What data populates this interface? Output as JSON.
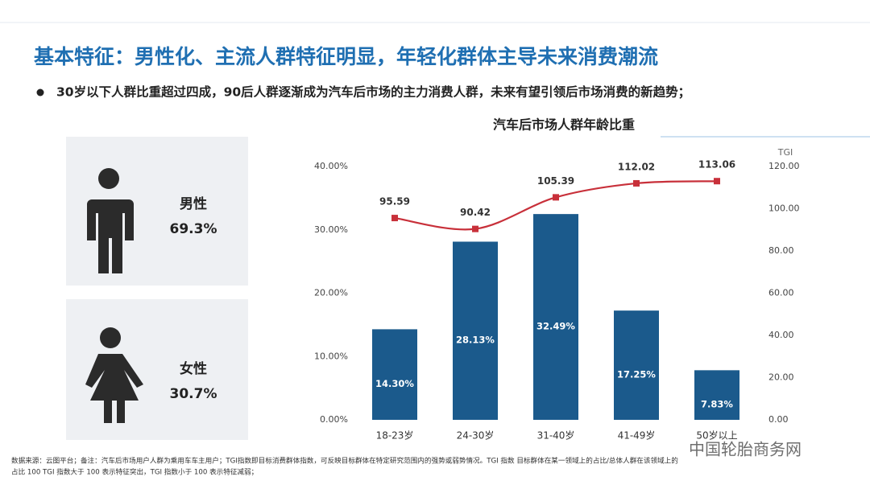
{
  "header": {
    "title": "基本特征：男性化、主流人群特征明显，年轻化群体主导未来消费潮流",
    "bullet": "30岁以下人群比重超过四成，90后人群逐渐成为汽车后市场的主力消费人群，未来有望引领后市场消费的新趋势；"
  },
  "profile": {
    "male": {
      "label": "男性",
      "value": "69.3%"
    },
    "female": {
      "label": "女性",
      "value": "30.7%"
    }
  },
  "chart_data": {
    "type": "bar",
    "title": "汽车后市场人群年龄比重",
    "categories": [
      "18-23岁",
      "24-30岁",
      "31-40岁",
      "41-49岁",
      "50岁以上"
    ],
    "series": [
      {
        "type": "bar",
        "color": "#1b5a8c",
        "values": [
          14.3,
          28.13,
          32.49,
          17.25,
          7.83
        ],
        "value_labels": [
          "14.30%",
          "28.13%",
          "32.49%",
          "17.25%",
          "7.83%"
        ]
      },
      {
        "type": "line",
        "axis": "y2",
        "color": "#c8303a",
        "values": [
          95.59,
          90.42,
          105.39,
          112.02,
          113.06
        ]
      }
    ],
    "ylim": [
      0,
      40
    ],
    "yticks": [
      {
        "value": 0,
        "label": "0.00%"
      },
      {
        "value": 10,
        "label": "10.00%"
      },
      {
        "value": 20,
        "label": "20.00%"
      },
      {
        "value": 30,
        "label": "30.00%"
      },
      {
        "value": 40,
        "label": "40.00%"
      }
    ],
    "y2label": "TGI",
    "y2lim": [
      0,
      120
    ],
    "y2ticks": [
      {
        "value": 0,
        "label": "0.00"
      },
      {
        "value": 20,
        "label": "20.00"
      },
      {
        "value": 40,
        "label": "40.00"
      },
      {
        "value": 60,
        "label": "60.00"
      },
      {
        "value": 80,
        "label": "80.00"
      },
      {
        "value": 100,
        "label": "100.00"
      },
      {
        "value": 120,
        "label": "120.00"
      }
    ],
    "grid": false
  },
  "footnote": [
    "数据来源：云图平台；备注：汽车后市场用户人群为乘用车车主用户；TGI指数即目标消费群体指数，可反映目标群体在特定研究范围内的强势或弱势情况。TGI 指数 目标群体在某一领域上的占比/总体人群在该领域上的",
    "占比 100 TGI 指数大于 100 表示特征突出，TGI 指数小于 100 表示特征减弱；"
  ],
  "watermark": "中国轮胎商务网"
}
